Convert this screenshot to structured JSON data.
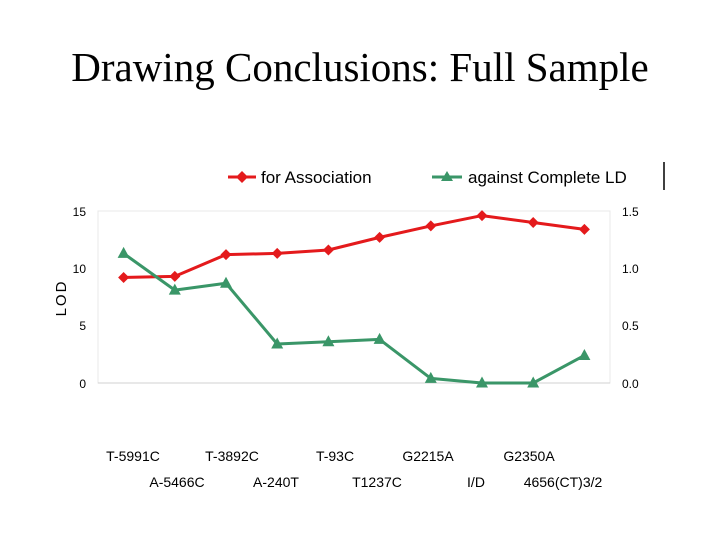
{
  "slide": {
    "title": "Drawing Conclusions: Full Sample"
  },
  "chart_data": {
    "type": "line",
    "title": "",
    "ylabel": "LOD",
    "ylim": [
      0,
      15
    ],
    "yticks": [
      "0",
      "5",
      "10",
      "15"
    ],
    "ylim_right": [
      0,
      1.5
    ],
    "yticks_right": [
      "0.0",
      "0.5",
      "1.0",
      "1.5"
    ],
    "grid": false,
    "legend_placement": "top",
    "categories": [
      "T-5991C",
      "A-5466C",
      "T-3892C",
      "A-240T",
      "T-93C",
      "T1237C",
      "G2215A",
      "I/D",
      "G2350A",
      "4656(CT)3/2"
    ],
    "series": [
      {
        "name": "for Association",
        "color": "#e41a1c",
        "marker": "diamond",
        "axis": "left",
        "values": [
          9.2,
          9.3,
          11.2,
          11.3,
          11.6,
          12.7,
          13.7,
          14.6,
          14.0,
          13.4
        ]
      },
      {
        "name": "against Complete LD",
        "color": "#3a9668",
        "marker": "triangle",
        "axis": "right",
        "values": [
          1.13,
          0.81,
          0.87,
          0.34,
          0.36,
          0.38,
          0.04,
          0.0,
          0.0,
          0.24
        ]
      }
    ]
  }
}
